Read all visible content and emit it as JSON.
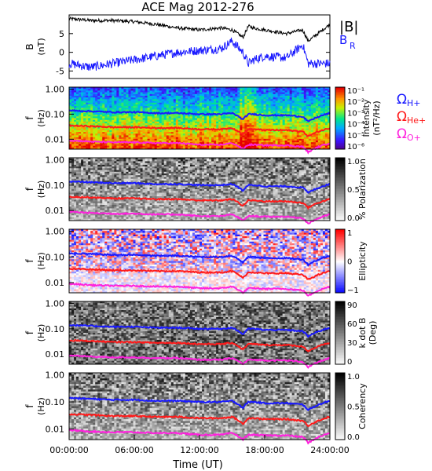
{
  "title": "ACE Mag 2012-276",
  "colors": {
    "b_total": "#000000",
    "b_r": "#1a1aff",
    "h_plus": "#1a1aff",
    "he_plus": "#ff1a1a",
    "o_plus": "#ff22dd"
  },
  "panel1": {
    "ylabel_main": "B",
    "ylabel_unit": "(nT)",
    "yticks": [
      "5",
      "0",
      "-5"
    ],
    "legend_b_total": "|B|",
    "legend_b_r_main": "B",
    "legend_b_r_sub": "R"
  },
  "freq_ylabel_main": "f",
  "freq_ylabel_unit": "(Hz)",
  "freq_yticks": [
    "1.00",
    "0.10",
    "0.01"
  ],
  "gyro_legend": [
    {
      "symbol": "Ω",
      "sub": "H+"
    },
    {
      "symbol": "Ω",
      "sub": "He+"
    },
    {
      "symbol": "Ω",
      "sub": "O+"
    }
  ],
  "colorbars": [
    {
      "label": "Intensity",
      "unit": "(nT²/Hz)",
      "ticks": [
        "10⁻¹",
        "10⁻²",
        "10⁻³",
        "10⁻⁴",
        "10⁻⁵",
        "10⁻⁶"
      ]
    },
    {
      "label": "% Polarization",
      "unit": "",
      "ticks": [
        "1.0",
        "0.5",
        "0.0"
      ]
    },
    {
      "label": "Ellipticity",
      "unit": "",
      "ticks": [
        "1",
        "0",
        "−1"
      ]
    },
    {
      "label": "k dot B",
      "unit": "(Deg)",
      "ticks": [
        "90",
        "60",
        "30",
        "0"
      ]
    },
    {
      "label": "Coherency",
      "unit": "",
      "ticks": [
        "1.0",
        "0.5",
        "0.0"
      ]
    }
  ],
  "xaxis": {
    "ticks": [
      "00:00:00",
      "06:00:00",
      "12:00:00",
      "18:00:00",
      "24:00:00"
    ],
    "label": "Time (UT)"
  },
  "chart_data": {
    "type": "line",
    "title": "ACE Mag 2012-276",
    "x": [
      0,
      2,
      4,
      6,
      8,
      10,
      12,
      14,
      15,
      16,
      16.5,
      17,
      18,
      20,
      21.5,
      22,
      24
    ],
    "series": [
      {
        "name": "|B|",
        "values": [
          9,
          8.5,
          8.5,
          8.2,
          7.5,
          6.5,
          6,
          6.5,
          6,
          4,
          7,
          6.5,
          6,
          5,
          6,
          3,
          7.5
        ]
      },
      {
        "name": "B_R",
        "values": [
          -3,
          -4,
          -3,
          -2,
          -1,
          0,
          0.5,
          1,
          3,
          0,
          -3,
          -2,
          -1,
          -1.5,
          2,
          -3,
          -3
        ]
      },
      {
        "name": "Ω_H+ (Hz)",
        "values": [
          0.14,
          0.13,
          0.12,
          0.12,
          0.11,
          0.11,
          0.1,
          0.1,
          0.11,
          0.06,
          0.1,
          0.1,
          0.09,
          0.09,
          0.08,
          0.05,
          0.11
        ]
      },
      {
        "name": "Ω_He+ (Hz)",
        "values": [
          0.035,
          0.033,
          0.03,
          0.03,
          0.028,
          0.028,
          0.025,
          0.025,
          0.028,
          0.015,
          0.025,
          0.025,
          0.023,
          0.023,
          0.02,
          0.013,
          0.028
        ]
      },
      {
        "name": "Ω_O+ (Hz)",
        "values": [
          0.009,
          0.008,
          0.0075,
          0.0075,
          0.007,
          0.007,
          0.006,
          0.006,
          0.007,
          0.004,
          0.006,
          0.006,
          0.0057,
          0.0057,
          0.005,
          0.003,
          0.007
        ]
      }
    ],
    "xlabel": "Time (UT)",
    "panel1_ylim": [
      -7,
      10
    ],
    "freq_ylim": [
      0.004,
      1.2
    ],
    "freq_scale": "log"
  }
}
